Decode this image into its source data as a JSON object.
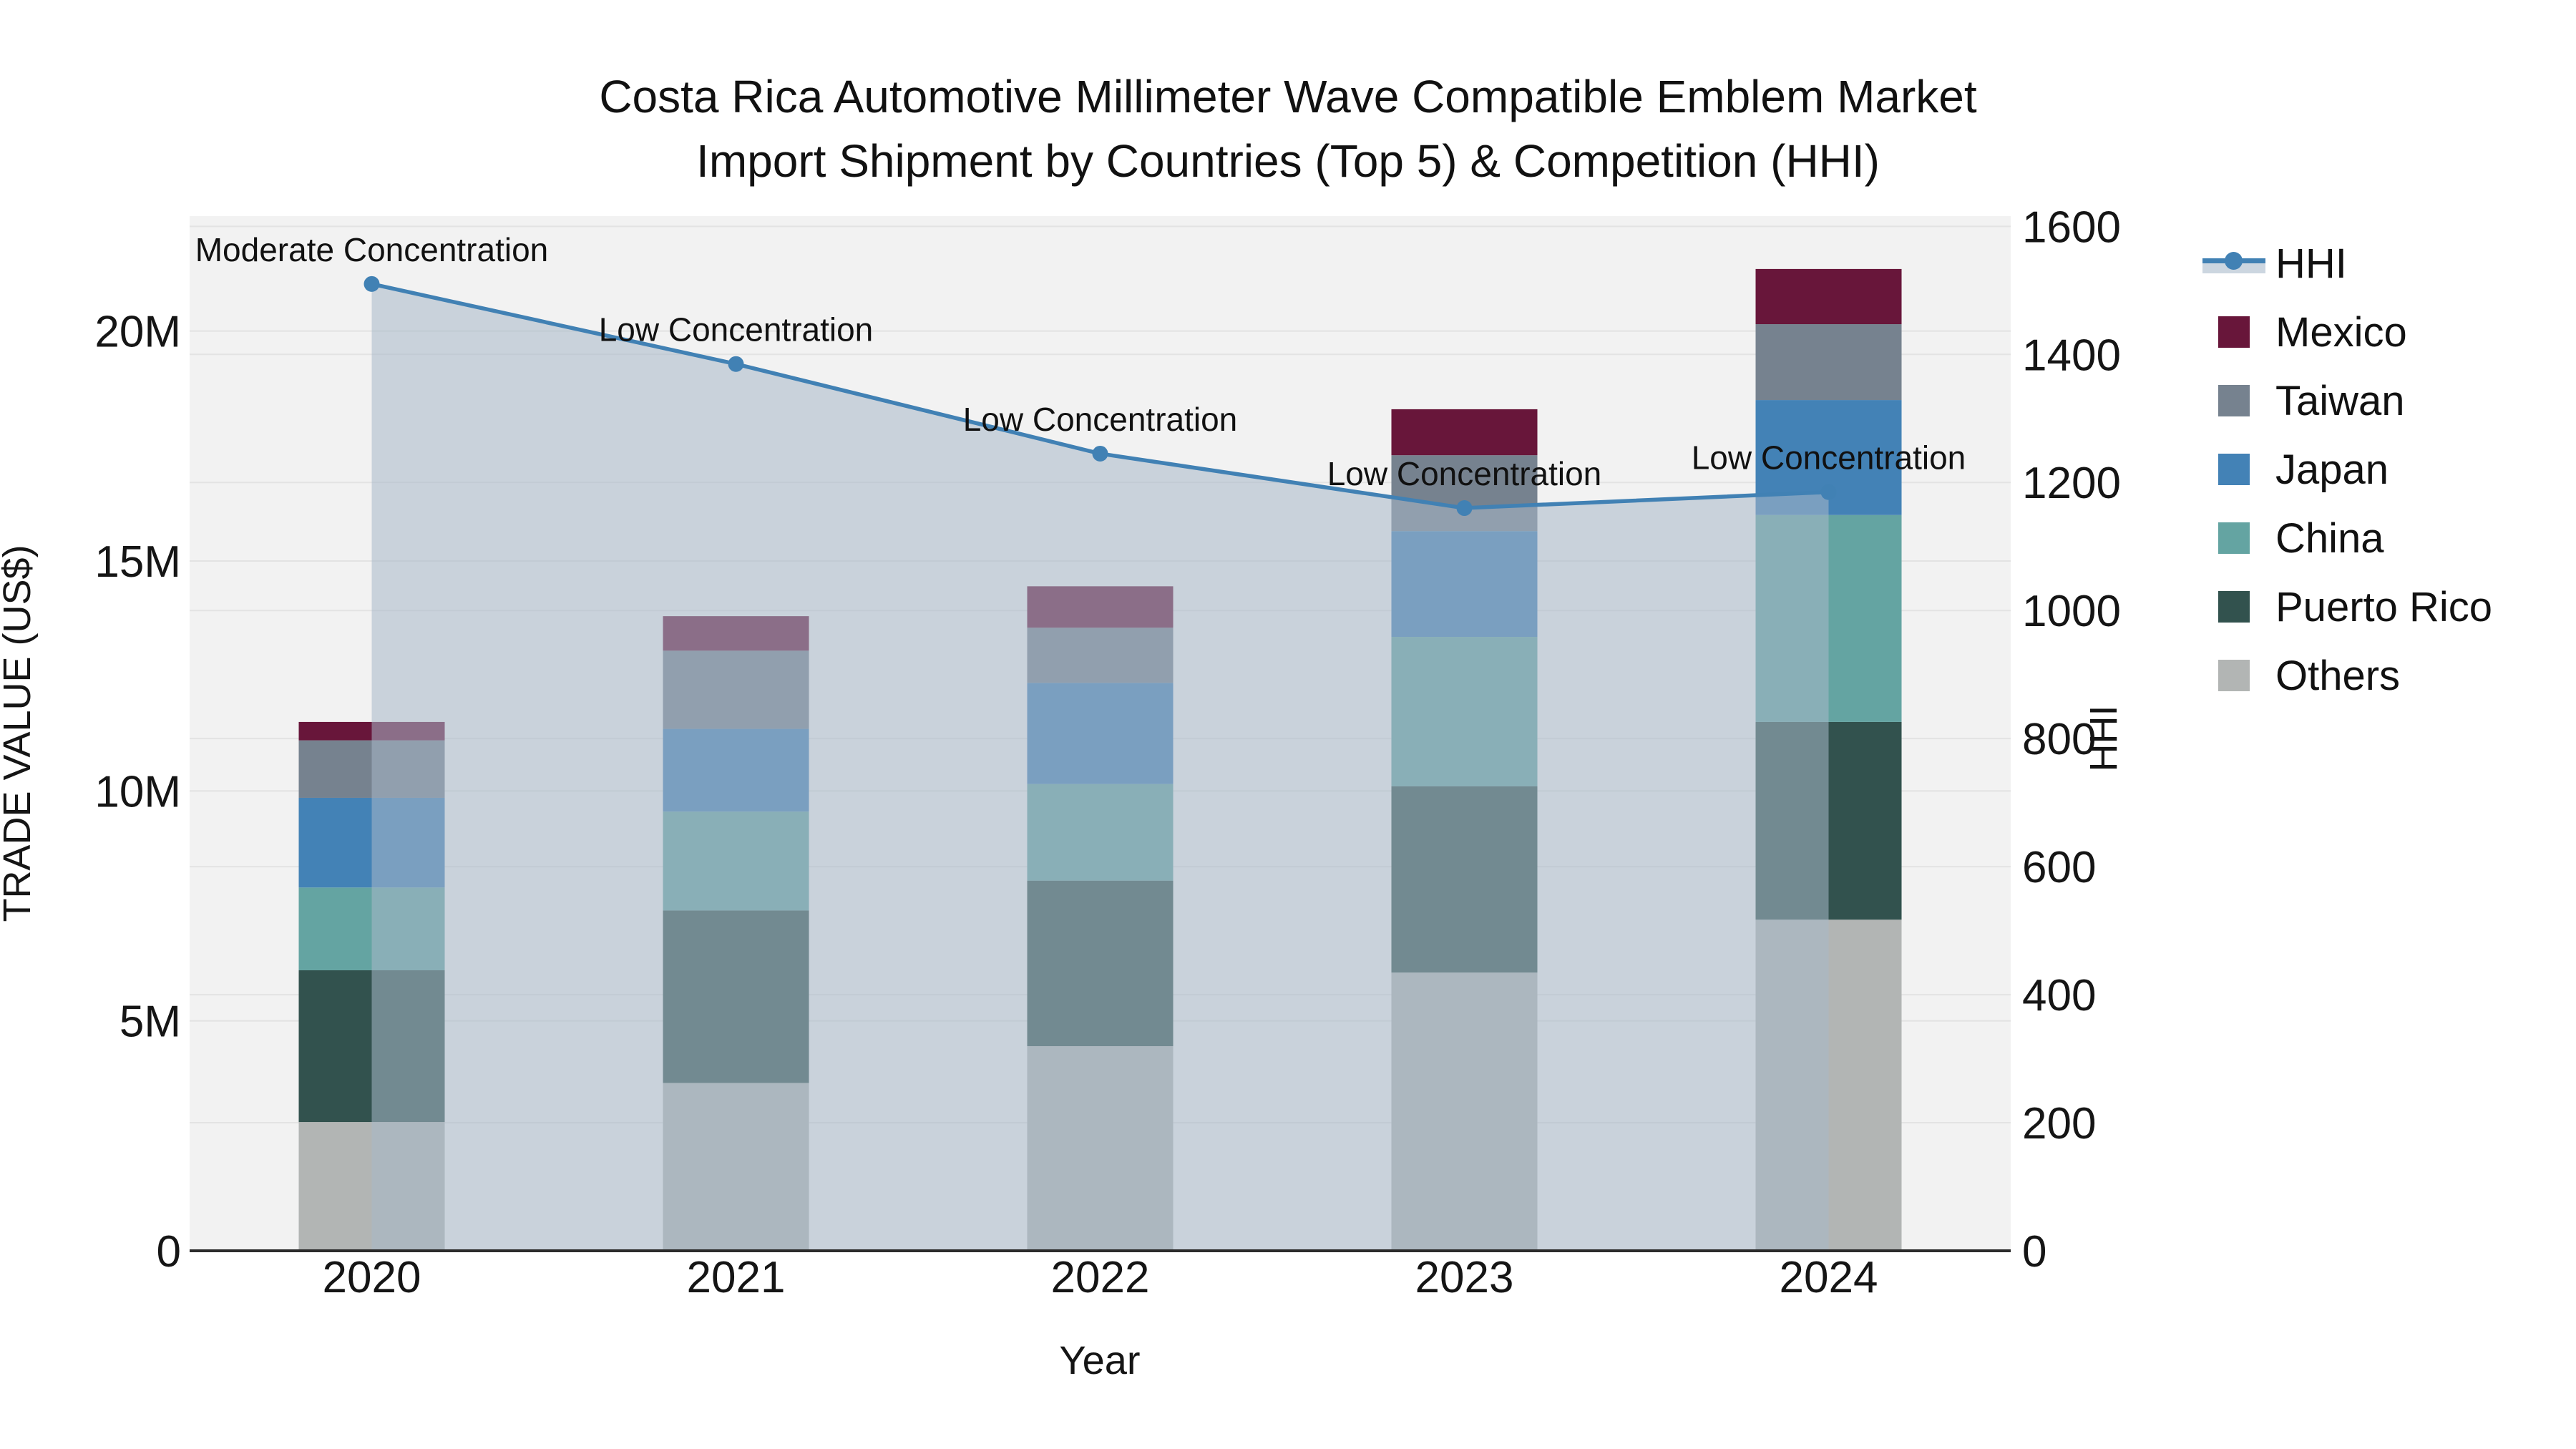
{
  "title": {
    "line1": "Costa Rica Automotive Millimeter Wave Compatible Emblem Market",
    "line2": "Import Shipment by Countries (Top 5) & Competition (HHI)"
  },
  "colors": {
    "plot_bg": "#f2f2f2",
    "grid": "#e3e3e3",
    "axis_line": "#2b2b2b",
    "text": "#151515",
    "hhi_line": "#4181b4",
    "hhi_fill": "rgba(168,184,200,0.55)"
  },
  "chart_data": {
    "type": "combo-stacked-bar-line",
    "categories": [
      "2020",
      "2021",
      "2022",
      "2023",
      "2024"
    ],
    "xlabel": "Year",
    "ylabel": "TRADE VALUE (US$)",
    "y2label": "HHI",
    "ylim": [
      0,
      22500000
    ],
    "y2lim": [
      0,
      1616
    ],
    "grid": true,
    "legend_position": "right",
    "y_ticks": [
      {
        "value": 0,
        "label": "0"
      },
      {
        "value": 5000000,
        "label": "5M"
      },
      {
        "value": 10000000,
        "label": "10M"
      },
      {
        "value": 15000000,
        "label": "15M"
      },
      {
        "value": 20000000,
        "label": "20M"
      }
    ],
    "y2_ticks": [
      {
        "value": 0,
        "label": "0"
      },
      {
        "value": 200,
        "label": "200"
      },
      {
        "value": 400,
        "label": "400"
      },
      {
        "value": 600,
        "label": "600"
      },
      {
        "value": 800,
        "label": "800"
      },
      {
        "value": 1000,
        "label": "1000"
      },
      {
        "value": 1200,
        "label": "1200"
      },
      {
        "value": 1400,
        "label": "1400"
      },
      {
        "value": 1600,
        "label": "1600"
      }
    ],
    "bar_series": [
      {
        "name": "Others",
        "color": "#b2b5b4",
        "values": [
          2800000,
          3650000,
          4450000,
          6050000,
          7200000
        ]
      },
      {
        "name": "Puerto Rico",
        "color": "#32524e",
        "values": [
          3300000,
          3750000,
          3600000,
          4050000,
          4300000
        ]
      },
      {
        "name": "China",
        "color": "#64a4a2",
        "values": [
          1800000,
          2150000,
          2100000,
          3250000,
          4500000
        ]
      },
      {
        "name": "Japan",
        "color": "#4382b6",
        "values": [
          1950000,
          1800000,
          2200000,
          2300000,
          2500000
        ]
      },
      {
        "name": "Taiwan",
        "color": "#76828f",
        "values": [
          1250000,
          1700000,
          1200000,
          1650000,
          1650000
        ]
      },
      {
        "name": "Mexico",
        "color": "#68163a",
        "values": [
          400000,
          750000,
          900000,
          1000000,
          1200000
        ]
      }
    ],
    "line_series": {
      "name": "HHI",
      "values": [
        1510,
        1385,
        1245,
        1160,
        1185
      ]
    },
    "annotations": [
      "Moderate Concentration",
      "Low Concentration",
      "Low Concentration",
      "Low Concentration",
      "Low Concentration"
    ]
  }
}
